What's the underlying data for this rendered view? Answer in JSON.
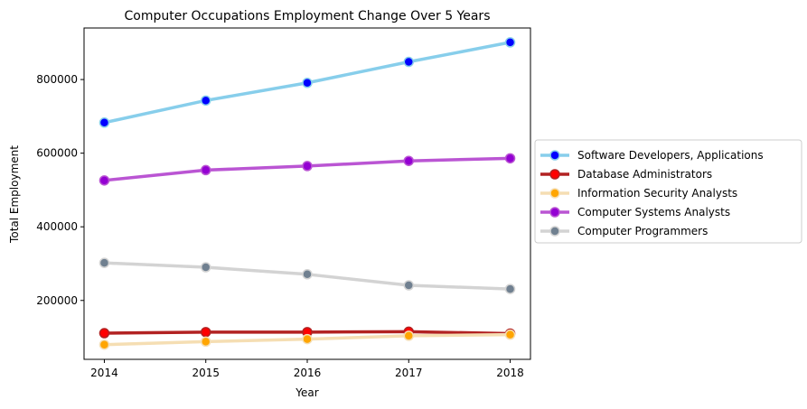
{
  "chart_data": {
    "type": "line",
    "title": "Computer Occupations Employment Change Over 5 Years",
    "xlabel": "Year",
    "ylabel": "Total Employment",
    "x": [
      2014,
      2015,
      2016,
      2017,
      2018
    ],
    "x_tick_labels": [
      "2014",
      "2015",
      "2016",
      "2017",
      "2018"
    ],
    "y_ticks": [
      200000,
      400000,
      600000,
      800000
    ],
    "y_tick_labels": [
      "200000",
      "400000",
      "600000",
      "800000"
    ],
    "xlim": [
      2013.8,
      2018.2
    ],
    "ylim": [
      40000,
      940000
    ],
    "grid": false,
    "legend_position": "outside-right",
    "series": [
      {
        "name": "Software Developers, Applications",
        "values": [
          683000,
          743000,
          791000,
          848000,
          901000
        ],
        "line_color": "#87ceeb",
        "marker_color": "#0000ff"
      },
      {
        "name": "Database Administrators",
        "values": [
          111000,
          114000,
          114000,
          115000,
          110000
        ],
        "line_color": "#b22222",
        "marker_color": "#ff0000"
      },
      {
        "name": "Information Security Analysts",
        "values": [
          80000,
          88000,
          95000,
          104000,
          107000
        ],
        "line_color": "#f5deb3",
        "marker_color": "#ffa500"
      },
      {
        "name": "Computer Systems Analysts",
        "values": [
          526000,
          554000,
          565000,
          579000,
          586000
        ],
        "line_color": "#ba55d3",
        "marker_color": "#9400d3"
      },
      {
        "name": "Computer Programmers",
        "values": [
          302000,
          290000,
          271000,
          241000,
          231000
        ],
        "line_color": "#d3d3d3",
        "marker_color": "#708090"
      }
    ]
  }
}
